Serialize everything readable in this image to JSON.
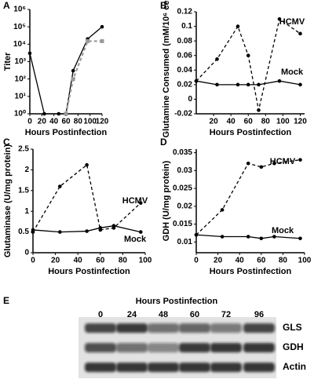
{
  "chart_data": [
    {
      "type": "line",
      "panel_label": "A",
      "ylabel": "Titer",
      "xlabel": "Hours Postinfection",
      "log_y": true,
      "xlim": [
        0,
        120
      ],
      "xticks": [
        0,
        20,
        40,
        60,
        80,
        100,
        120
      ],
      "ylim": [
        1,
        1000000
      ],
      "yticks": [
        {
          "value": 1,
          "label": "10⁰"
        },
        {
          "value": 10,
          "label": "10¹"
        },
        {
          "value": 100,
          "label": "10²"
        },
        {
          "value": 1000,
          "label": "10³"
        },
        {
          "value": 10000,
          "label": "10⁴"
        },
        {
          "value": 100000,
          "label": "10⁵"
        },
        {
          "value": 1000000,
          "label": "10⁶"
        }
      ],
      "series": [
        {
          "color": "#000000",
          "line_style": "solid",
          "x": [
            0,
            24,
            48,
            60,
            72,
            96,
            120
          ],
          "values": [
            3000,
            1,
            1,
            1,
            300,
            20000,
            100000
          ]
        },
        {
          "color": "#999999",
          "line_style": "dashed",
          "x": [
            60,
            72,
            96,
            120
          ],
          "values": [
            1,
            100,
            15000,
            15000
          ]
        }
      ]
    },
    {
      "type": "line",
      "panel_label": "B",
      "ylabel": "Glutamine Consumed (mM/10⁶ cells)",
      "xlabel": "Hours Postinfection",
      "xlim": [
        0,
        125
      ],
      "xticks": [
        20,
        40,
        60,
        80,
        100,
        120
      ],
      "ylim": [
        -0.02,
        0.12
      ],
      "yticks": [
        -0.02,
        0,
        0.02,
        0.04,
        0.06,
        0.08,
        0.1,
        0.12
      ],
      "series": [
        {
          "name": "HCMV",
          "color": "#000000",
          "line_style": "dashed",
          "x": [
            0,
            24,
            48,
            60,
            72,
            96,
            120
          ],
          "values": [
            0.025,
            0.055,
            0.1,
            0.06,
            -0.015,
            0.11,
            0.09
          ]
        },
        {
          "name": "Mock",
          "color": "#000000",
          "line_style": "solid",
          "x": [
            0,
            24,
            48,
            60,
            72,
            96,
            120
          ],
          "values": [
            0.025,
            0.02,
            0.02,
            0.02,
            0.02,
            0.025,
            0.02
          ]
        }
      ]
    },
    {
      "type": "line",
      "panel_label": "C",
      "ylabel": "Glutaminase (U/mg protein)",
      "xlabel": "Hours Postinfection",
      "xlim": [
        0,
        100
      ],
      "xticks": [
        0,
        20,
        40,
        60,
        80,
        100
      ],
      "ylim": [
        0,
        2.5
      ],
      "yticks": [
        0,
        0.5,
        1,
        1.5,
        2,
        2.5
      ],
      "series": [
        {
          "name": "HCMV",
          "color": "#000000",
          "line_style": "dashed",
          "x": [
            0,
            24,
            48,
            60,
            72,
            96
          ],
          "values": [
            0.5,
            1.6,
            2.12,
            0.55,
            0.6,
            1.2
          ]
        },
        {
          "name": "Mock",
          "color": "#000000",
          "line_style": "solid",
          "x": [
            0,
            24,
            48,
            60,
            72,
            96
          ],
          "values": [
            0.55,
            0.5,
            0.52,
            0.6,
            0.65,
            0.5
          ]
        }
      ]
    },
    {
      "type": "line",
      "panel_label": "D",
      "ylabel": "GDH (U/mg protein)",
      "xlabel": "Hours Postinfection",
      "xlim": [
        0,
        100
      ],
      "xticks": [
        0,
        20,
        40,
        60,
        80,
        100
      ],
      "ylim": [
        0.007,
        0.036
      ],
      "yticks": [
        0.01,
        0.015,
        0.02,
        0.025,
        0.03,
        0.035
      ],
      "series": [
        {
          "name": "HCMV",
          "color": "#000000",
          "line_style": "dashed",
          "x": [
            0,
            24,
            48,
            60,
            72,
            96
          ],
          "values": [
            0.012,
            0.019,
            0.032,
            0.031,
            0.032,
            0.033
          ]
        },
        {
          "name": "Mock",
          "color": "#000000",
          "line_style": "solid",
          "x": [
            0,
            24,
            48,
            60,
            72,
            96
          ],
          "values": [
            0.012,
            0.0115,
            0.0115,
            0.011,
            0.0115,
            0.011
          ]
        }
      ]
    }
  ],
  "blot": {
    "panel_label": "E",
    "title": "Hours Postinfection",
    "lanes": [
      "0",
      "24",
      "48",
      "60",
      "72",
      "96"
    ],
    "bands": [
      "GLS",
      "GDH",
      "Actin"
    ]
  }
}
